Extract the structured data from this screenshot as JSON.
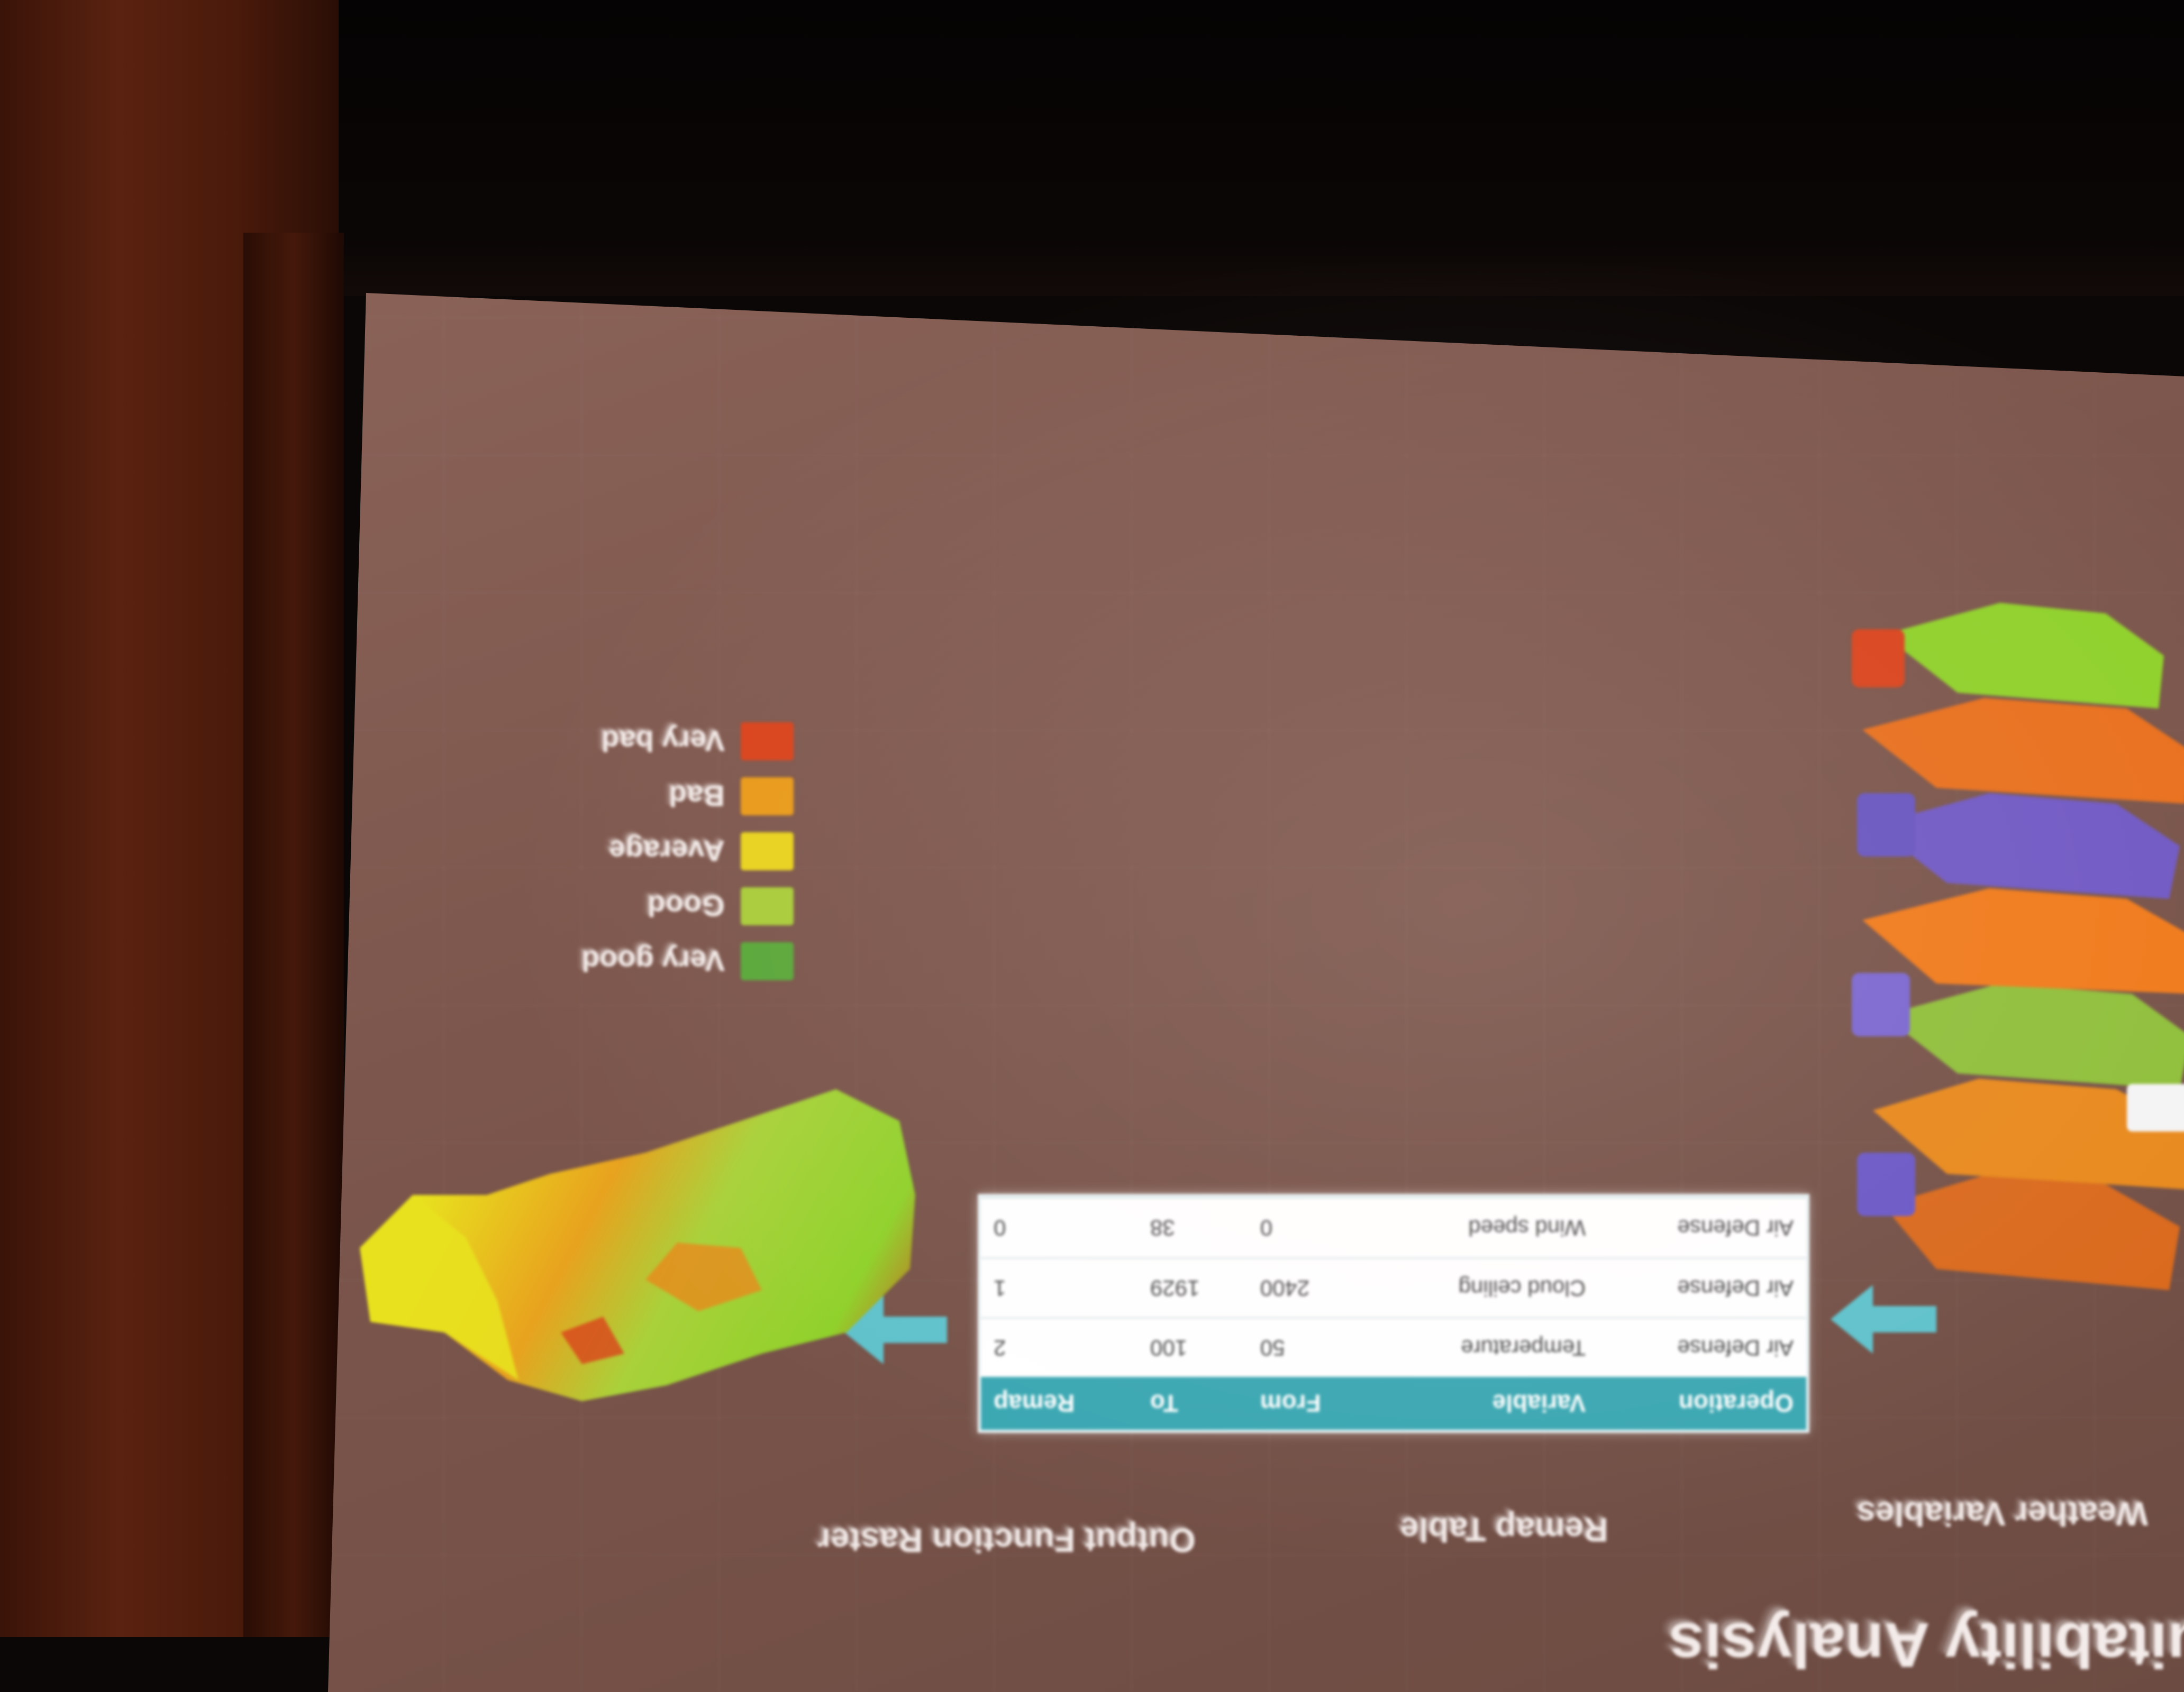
{
  "slide": {
    "title": "Suitability Analysis",
    "labels": {
      "weather_variables": "Weather Variables",
      "remap_table": "Remap Table",
      "output_raster": "Output Function Raster"
    }
  },
  "remap_table": {
    "columns": [
      "Operation",
      "Variable",
      "From",
      "To",
      "Remap"
    ],
    "rows": [
      [
        "Air Defense",
        "Temperature",
        "50",
        "100",
        "2"
      ],
      [
        "Air Defense",
        "Cloud ceiling",
        "2400",
        "1929",
        "1"
      ],
      [
        "Air Defense",
        "Wind speed",
        "0",
        "38",
        "0"
      ]
    ]
  },
  "legend": {
    "items": [
      {
        "label": "Very good",
        "color": "#5aa83a"
      },
      {
        "label": "Good",
        "color": "#a9cc3a"
      },
      {
        "label": "Average",
        "color": "#e8d21e"
      },
      {
        "label": "Bad",
        "color": "#e89a1a"
      },
      {
        "label": "Very bad",
        "color": "#d9431c"
      }
    ]
  },
  "colors": {
    "table_header": "#3aa7b2",
    "arrow": "#5fc2cc",
    "slide_background": "#7c564c"
  }
}
